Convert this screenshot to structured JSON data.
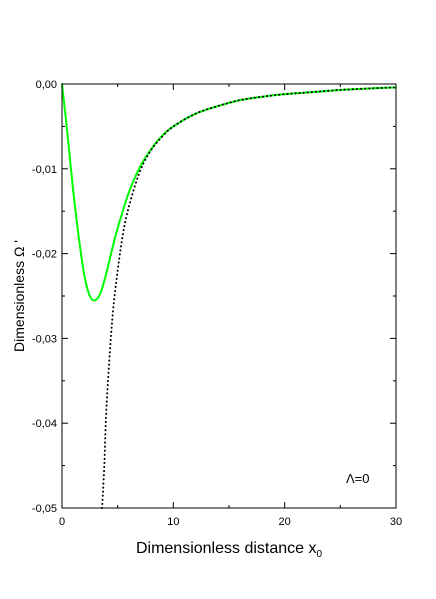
{
  "chart_data": {
    "type": "line",
    "xlabel": "Dimensionless distance x",
    "xlabel_sub": "0",
    "ylabel": "Dimensionless Ω '",
    "annotation": "Λ=0",
    "xlim": [
      0,
      30
    ],
    "ylim": [
      -0.05,
      0.0
    ],
    "x_ticks": [
      0,
      10,
      20,
      30
    ],
    "x_tick_labels": [
      "0",
      "10",
      "20",
      "30"
    ],
    "y_ticks": [
      0.0,
      -0.01,
      -0.02,
      -0.03,
      -0.04,
      -0.05
    ],
    "y_tick_labels": [
      "0,00",
      "-0,01",
      "-0,02",
      "-0,03",
      "-0,04",
      "-0,05"
    ],
    "grid": false,
    "series": [
      {
        "style": "solid",
        "color": "#00ff00",
        "x": [
          0,
          0.5,
          1,
          1.5,
          2,
          2.5,
          3,
          3.5,
          4,
          4.5,
          5,
          6,
          7,
          8,
          9,
          10,
          12,
          14,
          16,
          18,
          20,
          22,
          25,
          28,
          30
        ],
        "y": [
          0,
          -0.006,
          -0.0125,
          -0.018,
          -0.0225,
          -0.025,
          -0.0255,
          -0.0245,
          -0.0222,
          -0.0195,
          -0.017,
          -0.0128,
          -0.0098,
          -0.0077,
          -0.0061,
          -0.005,
          -0.0035,
          -0.0026,
          -0.0019,
          -0.0015,
          -0.0012,
          -0.001,
          -0.0007,
          -0.0005,
          -0.0004
        ]
      },
      {
        "style": "dotted",
        "color": "#000000",
        "x": [
          3.6,
          3.8,
          4,
          4.5,
          5,
          5.5,
          6,
          7,
          8,
          9,
          10,
          12,
          14,
          16,
          18,
          20,
          22,
          25,
          28,
          30
        ],
        "y": [
          -0.05,
          -0.045,
          -0.038,
          -0.028,
          -0.022,
          -0.0175,
          -0.0145,
          -0.0103,
          -0.0078,
          -0.0062,
          -0.005,
          -0.0035,
          -0.0026,
          -0.0019,
          -0.0015,
          -0.0012,
          -0.001,
          -0.0007,
          -0.0005,
          -0.0004
        ]
      }
    ]
  }
}
